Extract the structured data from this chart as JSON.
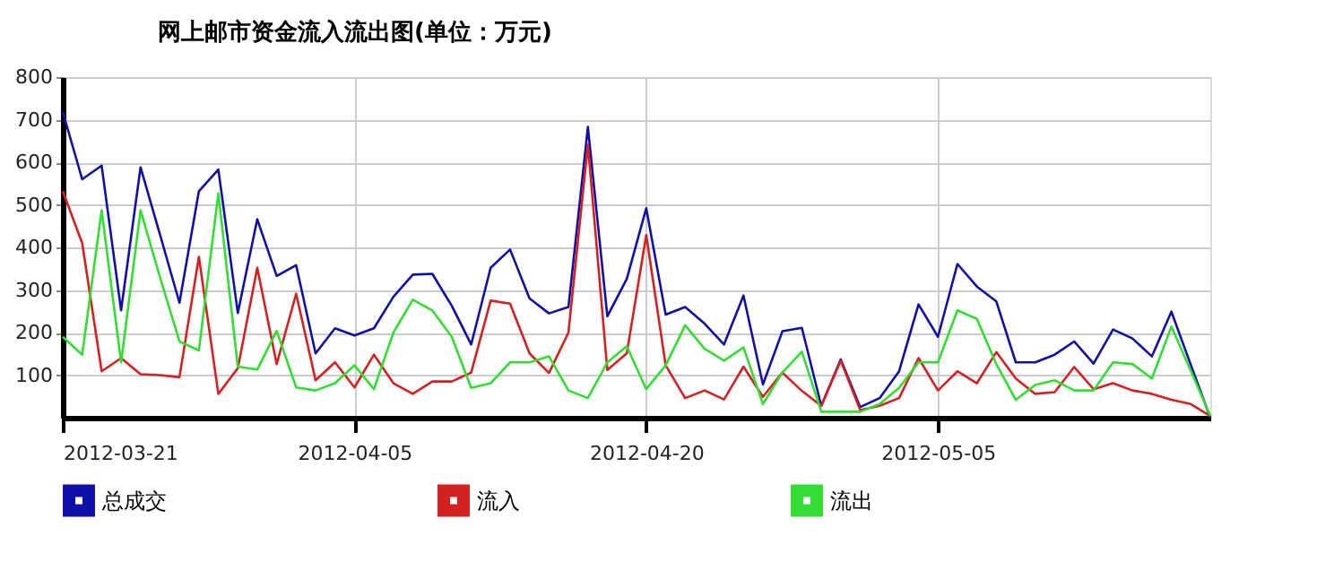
{
  "chart_data": {
    "type": "line",
    "title": "网上邮市资金流入流出图(单位：万元)",
    "x": [
      "2012-03-21",
      "2012-03-22",
      "2012-03-23",
      "2012-03-24",
      "2012-03-25",
      "2012-03-26",
      "2012-03-27",
      "2012-03-28",
      "2012-03-29",
      "2012-03-30",
      "2012-03-31",
      "2012-04-01",
      "2012-04-02",
      "2012-04-03",
      "2012-04-04",
      "2012-04-05",
      "2012-04-06",
      "2012-04-07",
      "2012-04-08",
      "2012-04-09",
      "2012-04-10",
      "2012-04-11",
      "2012-04-12",
      "2012-04-13",
      "2012-04-14",
      "2012-04-15",
      "2012-04-16",
      "2012-04-17",
      "2012-04-18",
      "2012-04-19",
      "2012-04-20",
      "2012-04-21",
      "2012-04-22",
      "2012-04-23",
      "2012-04-24",
      "2012-04-25",
      "2012-04-26",
      "2012-04-27",
      "2012-04-28",
      "2012-04-29",
      "2012-04-30",
      "2012-05-01",
      "2012-05-02",
      "2012-05-03",
      "2012-05-04",
      "2012-05-05",
      "2012-05-06",
      "2012-05-07",
      "2012-05-08",
      "2012-05-09",
      "2012-05-10",
      "2012-05-11",
      "2012-05-12",
      "2012-05-13",
      "2012-05-14",
      "2012-05-15",
      "2012-05-16",
      "2012-05-17",
      "2012-05-18",
      "2012-05-19"
    ],
    "series": [
      {
        "name": "总成交",
        "color": "#1010a8",
        "values": [
          718,
          560,
          592,
          252,
          588,
          430,
          270,
          532,
          583,
          246,
          466,
          333,
          358,
          151,
          210,
          193,
          210,
          284,
          336,
          338,
          263,
          172,
          352,
          395,
          280,
          245,
          260,
          683,
          238,
          326,
          492,
          242,
          260,
          221,
          172,
          287,
          78,
          203,
          211,
          28,
          137,
          25,
          46,
          109,
          266,
          190,
          361,
          308,
          273,
          130,
          130,
          148,
          179,
          127,
          207,
          186,
          144,
          249,
          124,
          0
        ]
      },
      {
        "name": "流入",
        "color": "#d42020",
        "values": [
          532,
          410,
          109,
          140,
          102,
          100,
          95,
          378,
          56,
          116,
          352,
          126,
          291,
          88,
          130,
          71,
          148,
          81,
          56,
          85,
          85,
          106,
          275,
          268,
          151,
          105,
          200,
          641,
          112,
          151,
          429,
          123,
          46,
          64,
          43,
          120,
          49,
          106,
          63,
          28,
          134,
          18,
          28,
          46,
          140,
          64,
          109,
          81,
          154,
          92,
          56,
          60,
          119,
          67,
          81,
          64,
          56,
          42,
          32,
          4
        ]
      },
      {
        "name": "流出",
        "color": "#33dd33",
        "values": [
          190,
          148,
          487,
          130,
          487,
          330,
          179,
          158,
          527,
          120,
          113,
          204,
          71,
          64,
          81,
          123,
          67,
          200,
          277,
          252,
          190,
          70,
          81,
          130,
          130,
          144,
          64,
          46,
          130,
          168,
          67,
          123,
          217,
          162,
          134,
          165,
          32,
          106,
          155,
          14,
          14,
          14,
          32,
          70,
          130,
          130,
          252,
          232,
          126,
          42,
          77,
          88,
          64,
          64,
          130,
          126,
          92,
          214,
          110,
          4
        ]
      }
    ],
    "xlim": [
      "2012-03-21",
      "2012-05-19"
    ],
    "xticks": [
      "2012-03-21",
      "2012-04-05",
      "2012-04-20",
      "2012-05-05"
    ],
    "ylim": [
      0,
      800
    ],
    "yticks": [
      100,
      200,
      300,
      400,
      500,
      600,
      700,
      800
    ],
    "grid": true,
    "legend": "bottom",
    "marker": "none",
    "line_style": "solid"
  }
}
